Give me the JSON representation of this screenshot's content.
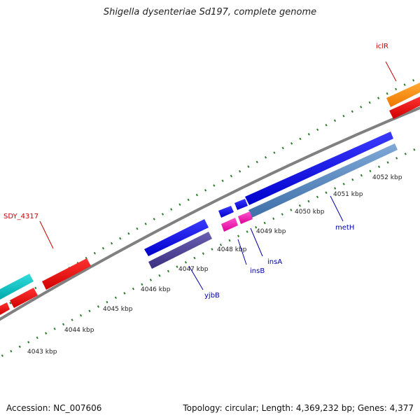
{
  "title": "Shigella dysenteriae Sd197, complete genome",
  "footer": {
    "accession": "Accession: NC_007606",
    "summary": "Topology: circular; Length: 4,369,232 bp; Genes: 4,377"
  },
  "colors": {
    "backbone": "#808080",
    "tick": "#2e7d2e",
    "label_red": "#cc0000",
    "label_blue": "#0000aa"
  },
  "ruler": [
    {
      "label": "4043 kbp"
    },
    {
      "label": "4044 kbp"
    },
    {
      "label": "4045 kbp"
    },
    {
      "label": "4046 kbp"
    },
    {
      "label": "4047 kbp"
    },
    {
      "label": "4048 kbp"
    },
    {
      "label": "4049 kbp"
    },
    {
      "label": "4050 kbp"
    },
    {
      "label": "4051 kbp"
    },
    {
      "label": "4052 kbp"
    }
  ],
  "gene_labels": [
    {
      "name": "iclR",
      "color": "red"
    },
    {
      "name": "SDY_4317",
      "color": "red"
    },
    {
      "name": "metH",
      "color": "blue"
    },
    {
      "name": "insA",
      "color": "blue"
    },
    {
      "name": "insB",
      "color": "blue"
    },
    {
      "name": "yjbB",
      "color": "blue"
    }
  ]
}
